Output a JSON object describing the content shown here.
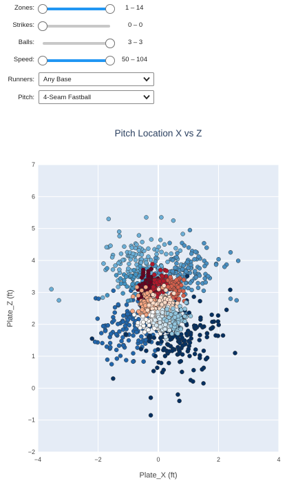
{
  "controls": {
    "zones": {
      "label": "Zones:",
      "range_text": "1 – 14",
      "min": 1,
      "max": 14,
      "low": 1,
      "high": 14
    },
    "strikes": {
      "label": "Strikes:",
      "range_text": "0 – 0",
      "min": 0,
      "max": 2,
      "low": 0,
      "high": 0
    },
    "balls": {
      "label": "Balls:",
      "range_text": "3 – 3",
      "min": 0,
      "max": 3,
      "low": 3,
      "high": 3
    },
    "speed": {
      "label": "Speed:",
      "range_text": "50 – 104",
      "min": 50,
      "max": 104,
      "low": 50,
      "high": 104
    },
    "runners": {
      "label": "Runners:",
      "value": "Any Base"
    },
    "pitch": {
      "label": "Pitch:",
      "value": "4-Seam Fastball"
    }
  },
  "icons": {
    "dropdown": "chevron-down-icon"
  },
  "chart_data": {
    "type": "scatter",
    "title": "Pitch Location X vs Z",
    "xlabel": "Plate_X (ft)",
    "ylabel": "Plate_Z (ft)",
    "xlim": [
      -4,
      4
    ],
    "ylim": [
      -2,
      7
    ],
    "xticks": [
      -4,
      -2,
      0,
      2,
      4
    ],
    "yticks": [
      -2,
      -1,
      0,
      1,
      2,
      3,
      4,
      5,
      6,
      7
    ],
    "grid": true,
    "background": "#e5ecf6",
    "marker_outline": "#333333",
    "zone_colors": {
      "1": "#67001f",
      "2": "#b2182b",
      "3": "#d6604d",
      "4": "#f4a582",
      "5": "#fddbc7",
      "6": "#f7f7f7",
      "7": "#d1e5f0",
      "8": "#92c5de",
      "9": "#4393c3",
      "11": "#6baed6",
      "12": "#4a90c2",
      "13": "#2166ac",
      "14": "#053061"
    },
    "groups": [
      {
        "zone": 1,
        "count": 90,
        "cx": -0.35,
        "cz": 3.15,
        "sx": 0.2,
        "sz": 0.25
      },
      {
        "zone": 2,
        "count": 75,
        "cx": 0.15,
        "cz": 3.2,
        "sx": 0.2,
        "sz": 0.22
      },
      {
        "zone": 3,
        "count": 55,
        "cx": 0.55,
        "cz": 3.15,
        "sx": 0.18,
        "sz": 0.22
      },
      {
        "zone": 4,
        "count": 80,
        "cx": -0.35,
        "cz": 2.65,
        "sx": 0.2,
        "sz": 0.22
      },
      {
        "zone": 5,
        "count": 95,
        "cx": 0.15,
        "cz": 2.6,
        "sx": 0.22,
        "sz": 0.22
      },
      {
        "zone": 6,
        "count": 60,
        "cx": -0.1,
        "cz": 2.1,
        "sx": 0.25,
        "sz": 0.2
      },
      {
        "zone": 7,
        "count": 65,
        "cx": 0.25,
        "cz": 2.05,
        "sx": 0.22,
        "sz": 0.2
      },
      {
        "zone": 8,
        "count": 55,
        "cx": 0.65,
        "cz": 2.1,
        "sx": 0.18,
        "sz": 0.22
      },
      {
        "zone": 9,
        "count": 45,
        "cx": -0.8,
        "cz": 3.3,
        "sx": 0.35,
        "sz": 0.35
      },
      {
        "zone": 11,
        "count": 130,
        "cx": -0.5,
        "cz": 3.9,
        "sx": 0.6,
        "sz": 0.4
      },
      {
        "zone": 12,
        "count": 110,
        "cx": 0.9,
        "cz": 3.6,
        "sx": 0.55,
        "sz": 0.45
      },
      {
        "zone": 13,
        "count": 130,
        "cx": -0.9,
        "cz": 1.9,
        "sx": 0.55,
        "sz": 0.55
      },
      {
        "zone": 14,
        "count": 170,
        "cx": 0.8,
        "cz": 1.7,
        "sx": 0.6,
        "sz": 0.6
      }
    ],
    "outliers": [
      {
        "x": -3.55,
        "z": 3.1,
        "zone": 11
      },
      {
        "x": -3.3,
        "z": 2.75,
        "zone": 11
      },
      {
        "x": -1.65,
        "z": 5.3,
        "zone": 11
      },
      {
        "x": -0.4,
        "z": 5.35,
        "zone": 11
      },
      {
        "x": 0.1,
        "z": 5.35,
        "zone": 11
      },
      {
        "x": 0.5,
        "z": 5.25,
        "zone": 11
      },
      {
        "x": 1.05,
        "z": 4.95,
        "zone": 12
      },
      {
        "x": -1.3,
        "z": 4.9,
        "zone": 11
      },
      {
        "x": 2.2,
        "z": 3.8,
        "zone": 12
      },
      {
        "x": 2.6,
        "z": 2.75,
        "zone": 12
      },
      {
        "x": 2.4,
        "z": 2.8,
        "zone": 12
      },
      {
        "x": -2.2,
        "z": 1.55,
        "zone": 14
      },
      {
        "x": -1.5,
        "z": 0.3,
        "zone": 14
      },
      {
        "x": -0.25,
        "z": -0.3,
        "zone": 14
      },
      {
        "x": -0.25,
        "z": -0.85,
        "zone": 14
      },
      {
        "x": 0.65,
        "z": -0.2,
        "zone": 14
      },
      {
        "x": 0.7,
        "z": -0.4,
        "zone": 14
      },
      {
        "x": 1.5,
        "z": 0.15,
        "zone": 14
      },
      {
        "x": 2.55,
        "z": 1.1,
        "zone": 14
      },
      {
        "x": 2.15,
        "z": 1.65,
        "zone": 14
      },
      {
        "x": -2.1,
        "z": 1.45,
        "zone": 13
      },
      {
        "x": -1.55,
        "z": 0.75,
        "zone": 13
      }
    ]
  }
}
